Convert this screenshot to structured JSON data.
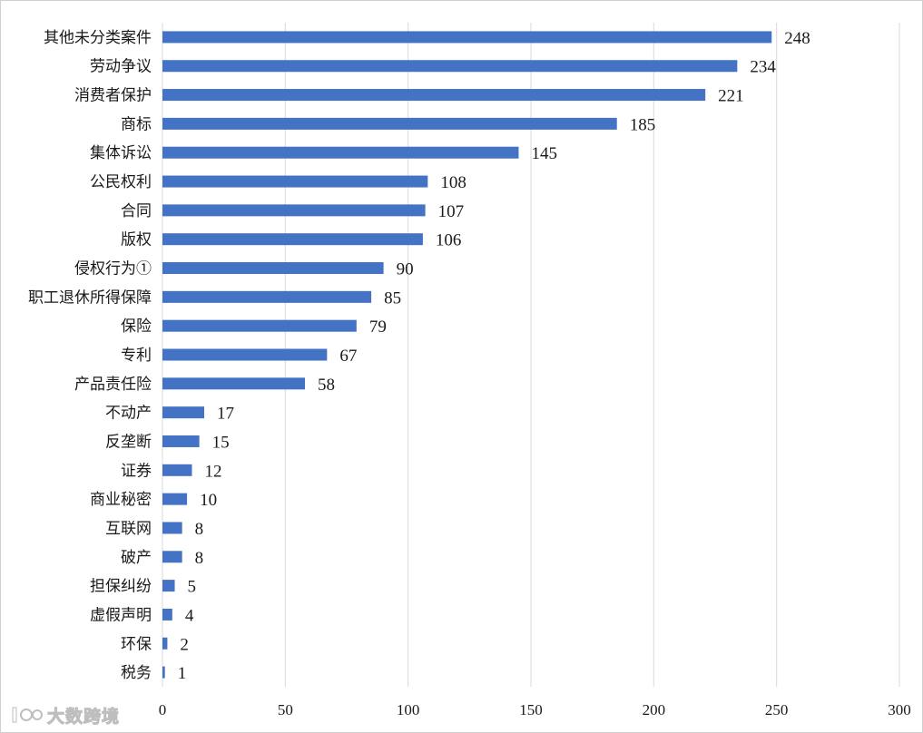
{
  "chart_data": {
    "type": "bar",
    "orientation": "horizontal",
    "title": "",
    "xlabel": "",
    "ylabel": "",
    "xlim": [
      0,
      300
    ],
    "xticks": [
      0,
      50,
      100,
      150,
      200,
      250,
      300
    ],
    "grid": true,
    "bar_color": "#4472c4",
    "categories": [
      "其他未分类案件",
      "劳动争议",
      "消费者保护",
      "商标",
      "集体诉讼",
      "公民权利",
      "合同",
      "版权",
      "侵权行为①",
      "职工退休所得保障",
      "保险",
      "专利",
      "产品责任险",
      "不动产",
      "反垄断",
      "证券",
      "商业秘密",
      "互联网",
      "破产",
      "担保纠纷",
      "虚假声明",
      "环保",
      "税务"
    ],
    "values": [
      248,
      234,
      221,
      185,
      145,
      108,
      107,
      106,
      90,
      85,
      79,
      67,
      58,
      17,
      15,
      12,
      10,
      8,
      8,
      5,
      4,
      2,
      1
    ]
  },
  "watermark": {
    "text": "大数跨境",
    "icon": "logo-mark-icon"
  }
}
